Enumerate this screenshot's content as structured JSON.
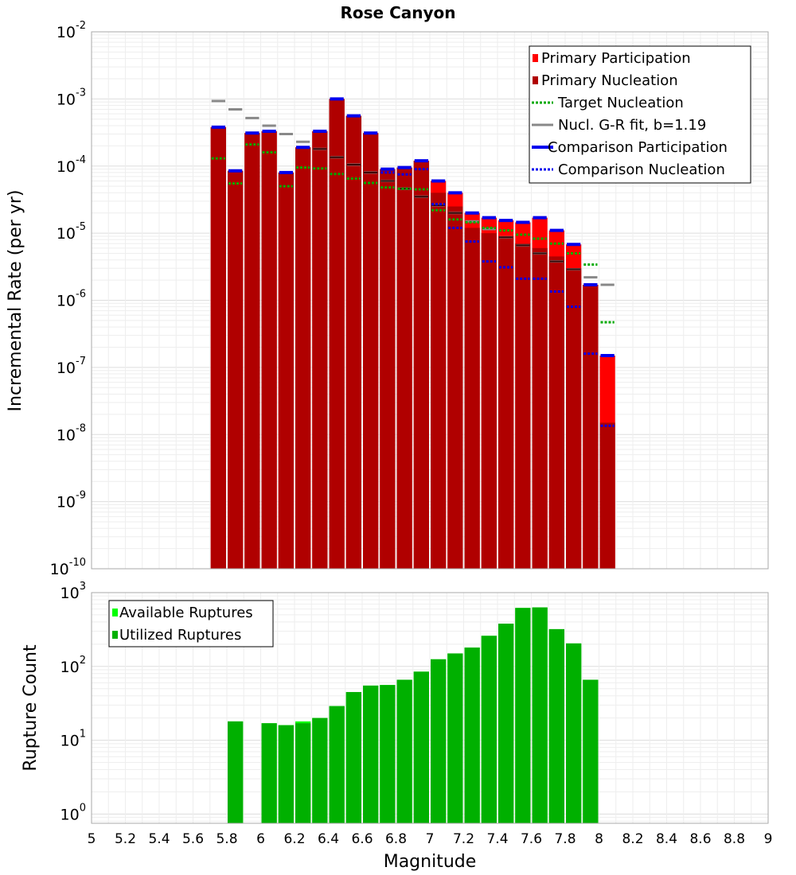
{
  "chart_data": {
    "title": "Rose Canyon",
    "xlabel": "Magnitude",
    "x_ticks": [
      "5",
      "5.2",
      "5.4",
      "5.6",
      "5.8",
      "6",
      "6.2",
      "6.4",
      "6.6",
      "6.8",
      "7",
      "7.2",
      "7.4",
      "7.6",
      "7.8",
      "8",
      "8.2",
      "8.4",
      "8.6",
      "8.8",
      "9"
    ],
    "xlim": [
      5,
      9
    ],
    "bin_width": 0.1,
    "panels": [
      {
        "type": "bar",
        "ylabel": "Incremental Rate (per yr)",
        "yscale": "log",
        "ylim": [
          1e-10,
          0.01
        ],
        "y_ticks": [
          {
            "base": "10",
            "exp": "-10",
            "value": 1e-10
          },
          {
            "base": "10",
            "exp": "-9",
            "value": 1e-09
          },
          {
            "base": "10",
            "exp": "-8",
            "value": 1e-08
          },
          {
            "base": "10",
            "exp": "-7",
            "value": 1e-07
          },
          {
            "base": "10",
            "exp": "-6",
            "value": 1e-06
          },
          {
            "base": "10",
            "exp": "-5",
            "value": 1e-05
          },
          {
            "base": "10",
            "exp": "-4",
            "value": 0.0001
          },
          {
            "base": "10",
            "exp": "-3",
            "value": 0.001
          },
          {
            "base": "10",
            "exp": "-2",
            "value": 0.01
          }
        ],
        "legend_position": "top-right",
        "legend": [
          {
            "label": "Primary Participation",
            "color": "#ff0000",
            "style": "box"
          },
          {
            "label": "Primary Nucleation",
            "color": "#b00000",
            "style": "box"
          },
          {
            "label": "Target Nucleation",
            "color": "#00aa00",
            "style": "dotted"
          },
          {
            "label": "Nucl. G-R fit, b=1.19",
            "color": "#888888",
            "style": "solid"
          },
          {
            "label": "Comparison Participation",
            "color": "#0000ee",
            "style": "thick"
          },
          {
            "label": "Comparison Nucleation",
            "color": "#0000ee",
            "style": "dotted"
          }
        ],
        "series": [
          {
            "name": "Primary Participation",
            "color": "#ff0000",
            "x": [
              5.75,
              5.85,
              5.95,
              6.05,
              6.15,
              6.25,
              6.35,
              6.45,
              6.55,
              6.65,
              6.75,
              6.85,
              6.95,
              7.05,
              7.15,
              7.25,
              7.35,
              7.45,
              7.55,
              7.65,
              7.75,
              7.85,
              7.95,
              8.05
            ],
            "y": [
              0.00038,
              8.5e-05,
              0.00031,
              0.00033,
              8e-05,
              0.00019,
              0.00033,
              0.001,
              0.00056,
              0.00031,
              9e-05,
              9.5e-05,
              0.00012,
              6e-05,
              4e-05,
              2e-05,
              1.7e-05,
              1.55e-05,
              1.45e-05,
              1.7e-05,
              1.1e-05,
              6.8e-06,
              1.7e-06,
              1.5e-07
            ]
          },
          {
            "name": "Primary Nucleation",
            "color": "#b00000",
            "x": [
              5.75,
              5.85,
              5.95,
              6.05,
              6.15,
              6.25,
              6.35,
              6.45,
              6.55,
              6.65,
              6.75,
              6.85,
              6.95,
              7.05,
              7.15,
              7.25,
              7.35,
              7.45,
              7.55,
              7.65,
              7.75,
              7.85,
              7.95,
              8.05
            ],
            "y": [
              0.00038,
              8.5e-05,
              0.00031,
              0.00033,
              8e-05,
              0.00019,
              0.00033,
              0.001,
              0.00056,
              0.00031,
              9e-05,
              9.5e-05,
              0.00012,
              4e-05,
              2.5e-05,
              1.2e-05,
              1e-05,
              9e-06,
              7e-06,
              6e-06,
              4.5e-06,
              3e-06,
              1.7e-06,
              1.5e-08
            ]
          },
          {
            "name": "Target Nucleation",
            "color": "#00aa00",
            "x": [
              5.75,
              5.85,
              5.95,
              6.05,
              6.15,
              6.25,
              6.35,
              6.45,
              6.55,
              6.65,
              6.75,
              6.85,
              6.95,
              7.05,
              7.15,
              7.25,
              7.35,
              7.45,
              7.55,
              7.65,
              7.75,
              7.85,
              7.95,
              8.05
            ],
            "y": [
              0.00013,
              5.5e-05,
              0.00021,
              0.00016,
              5e-05,
              9.5e-05,
              9.2e-05,
              7.6e-05,
              6.5e-05,
              5.6e-05,
              4.8e-05,
              4.6e-05,
              4.5e-05,
              2.2e-05,
              1.6e-05,
              1.45e-05,
              1.2e-05,
              1.1e-05,
              9.5e-06,
              8.3e-06,
              7e-06,
              5e-06,
              3.4e-06,
              4.7e-07
            ]
          },
          {
            "name": "Nucl. G-R fit, b=1.19",
            "color": "#888888",
            "x": [
              5.75,
              5.85,
              5.95,
              6.05,
              6.15,
              6.25,
              6.35,
              6.45,
              6.55,
              6.65,
              6.75,
              6.85,
              6.95,
              7.05,
              7.15,
              7.25,
              7.35,
              7.45,
              7.55,
              7.65,
              7.75,
              7.85,
              7.95,
              8.05
            ],
            "y": [
              0.00093,
              0.0007,
              0.00052,
              0.0004,
              0.0003,
              0.00023,
              0.00018,
              0.000135,
              0.000105,
              8e-05,
              6e-05,
              4.6e-05,
              3.5e-05,
              2.6e-05,
              2e-05,
              1.5e-05,
              1.15e-05,
              8.7e-06,
              6.6e-06,
              5e-06,
              3.8e-06,
              2.9e-06,
              2.2e-06,
              1.7e-06
            ]
          },
          {
            "name": "Comparison Participation",
            "color": "#0000ee",
            "x": [
              5.75,
              5.85,
              5.95,
              6.05,
              6.15,
              6.25,
              6.35,
              6.45,
              6.55,
              6.65,
              6.75,
              6.85,
              6.95,
              7.05,
              7.15,
              7.25,
              7.35,
              7.45,
              7.55,
              7.65,
              7.75,
              7.85,
              7.95,
              8.05
            ],
            "y": [
              0.00038,
              8.5e-05,
              0.00031,
              0.00033,
              8e-05,
              0.00019,
              0.00033,
              0.001,
              0.00056,
              0.00031,
              9e-05,
              9.5e-05,
              0.00012,
              6e-05,
              4e-05,
              2e-05,
              1.7e-05,
              1.55e-05,
              1.45e-05,
              1.7e-05,
              1.1e-05,
              6.8e-06,
              1.7e-06,
              1.5e-07
            ]
          },
          {
            "name": "Comparison Nucleation",
            "color": "#0000ee",
            "x": [
              6.75,
              6.85,
              6.95,
              7.05,
              7.15,
              7.25,
              7.35,
              7.45,
              7.55,
              7.65,
              7.75,
              7.85,
              7.95,
              8.05
            ],
            "y": [
              8e-05,
              7.5e-05,
              9e-05,
              2.7e-05,
              1.2e-05,
              7.5e-06,
              3.8e-06,
              3.1e-06,
              2.1e-06,
              2.1e-06,
              1.35e-06,
              8e-07,
              1.6e-07,
              1.35e-08
            ]
          }
        ]
      },
      {
        "type": "bar",
        "ylabel": "Rupture Count",
        "yscale": "log",
        "ylim": [
          0.75,
          1000
        ],
        "y_ticks": [
          {
            "base": "10",
            "exp": "0",
            "value": 1
          },
          {
            "base": "10",
            "exp": "1",
            "value": 10
          },
          {
            "base": "10",
            "exp": "2",
            "value": 100
          },
          {
            "base": "10",
            "exp": "3",
            "value": 1000
          }
        ],
        "legend_position": "top-left",
        "legend": [
          {
            "label": "Available Ruptures",
            "color": "#00ff00",
            "style": "box"
          },
          {
            "label": "Utilized Ruptures",
            "color": "#00b000",
            "style": "box"
          }
        ],
        "series": [
          {
            "name": "Available Ruptures",
            "color": "#00ff00",
            "x": [
              5.85,
              6.05,
              6.15,
              6.25,
              6.35,
              6.45,
              6.55,
              6.65,
              6.75,
              6.85,
              6.95,
              7.05,
              7.15,
              7.25,
              7.35,
              7.45,
              7.55,
              7.65,
              7.75,
              7.85,
              7.95
            ],
            "y": [
              18,
              17,
              16,
              18,
              20,
              29,
              45,
              55,
              56,
              66,
              85,
              125,
              150,
              180,
              260,
              380,
              620,
              630,
              320,
              205,
              66
            ]
          },
          {
            "name": "Utilized Ruptures",
            "color": "#00b000",
            "x": [
              5.85,
              6.05,
              6.15,
              6.25,
              6.35,
              6.45,
              6.55,
              6.65,
              6.75,
              6.85,
              6.95,
              7.05,
              7.15,
              7.25,
              7.35,
              7.45,
              7.55,
              7.65,
              7.75,
              7.85,
              7.95
            ],
            "y": [
              18,
              17,
              16,
              17,
              20,
              29,
              45,
              55,
              56,
              66,
              85,
              125,
              150,
              180,
              260,
              380,
              620,
              630,
              320,
              205,
              66
            ]
          }
        ]
      }
    ]
  }
}
